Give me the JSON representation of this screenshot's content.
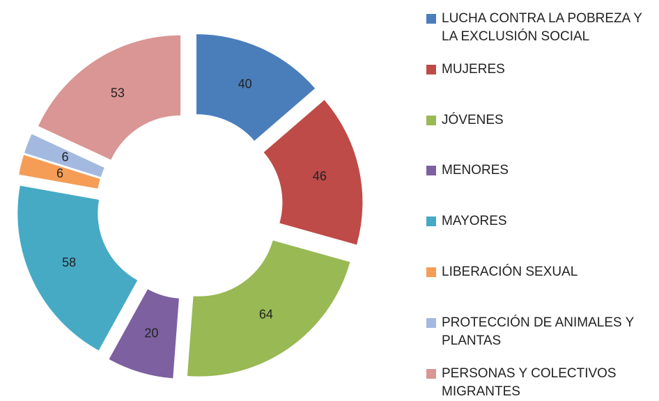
{
  "chart_data": {
    "type": "donut",
    "categories": [
      "LUCHA CONTRA LA POBREZA Y LA EXCLUSIÓN SOCIAL",
      "MUJERES",
      "JÓVENES",
      "MENORES",
      "MAYORES",
      "LIBERACIÓN SEXUAL",
      "PROTECCIÓN DE ANIMALES Y PLANTAS",
      "PERSONAS Y COLECTIVOS MIGRANTES"
    ],
    "values": [
      40,
      46,
      64,
      20,
      58,
      6,
      6,
      53
    ],
    "colors": [
      "#4a7ebb",
      "#be4b48",
      "#98b954",
      "#7d60a0",
      "#46aac5",
      "#f59d56",
      "#a3b9e0",
      "#d99694"
    ],
    "legend": "right"
  }
}
